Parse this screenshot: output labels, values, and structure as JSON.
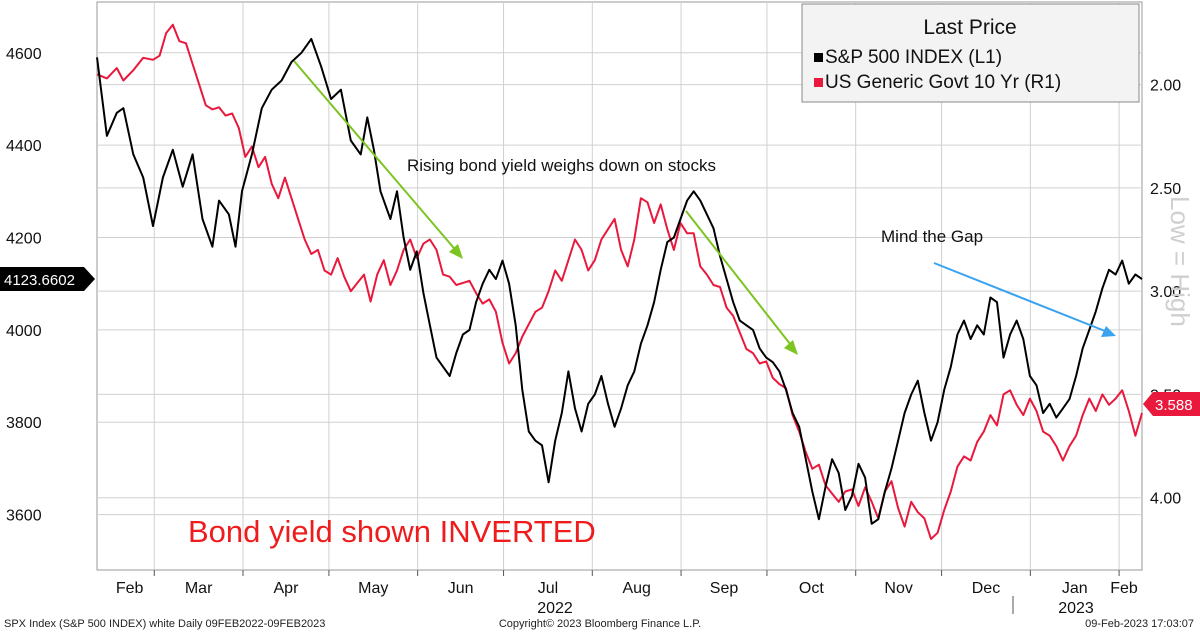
{
  "chart_data": {
    "type": "line",
    "legend": {
      "title": "Last Price",
      "placement": "top-right",
      "entries": [
        {
          "label": "S&P 500 INDEX  (L1)",
          "color": "#000000"
        },
        {
          "label": "US Generic Govt 10 Yr  (R1)",
          "color": "#e8193c"
        }
      ]
    },
    "left_axis": {
      "ticks": [
        "4600",
        "4400",
        "4200",
        "4000",
        "3800",
        "3600"
      ],
      "range": [
        3480,
        4710
      ]
    },
    "right_axis": {
      "ticks": [
        "2.00",
        "2.50",
        "3.00",
        "3.50",
        "4.00"
      ],
      "range": [
        1.6,
        4.35
      ],
      "inverted": true,
      "side_label": "Low = High"
    },
    "x_axis": {
      "months": [
        "Feb",
        "Mar",
        "Apr",
        "May",
        "Jun",
        "Jul",
        "Aug",
        "Sep",
        "Oct",
        "Nov",
        "Dec",
        "Jan",
        "Feb"
      ],
      "years": [
        "2022",
        "2023"
      ],
      "range": [
        "2022-02-09",
        "2023-02-09"
      ]
    },
    "last_values": {
      "left": "4123.6602",
      "right": "3.588"
    },
    "series": [
      {
        "name": "S&P 500 INDEX",
        "axis": "left",
        "color": "#000000",
        "points": [
          [
            0,
            4590
          ],
          [
            3,
            4420
          ],
          [
            6,
            4470
          ],
          [
            8,
            4480
          ],
          [
            11,
            4380
          ],
          [
            14,
            4330
          ],
          [
            17,
            4225
          ],
          [
            20,
            4330
          ],
          [
            23,
            4390
          ],
          [
            26,
            4310
          ],
          [
            29,
            4380
          ],
          [
            32,
            4240
          ],
          [
            35,
            4180
          ],
          [
            37,
            4280
          ],
          [
            40,
            4250
          ],
          [
            42,
            4180
          ],
          [
            44,
            4300
          ],
          [
            47,
            4380
          ],
          [
            50,
            4480
          ],
          [
            53,
            4520
          ],
          [
            56,
            4540
          ],
          [
            59,
            4580
          ],
          [
            62,
            4600
          ],
          [
            65,
            4630
          ],
          [
            68,
            4570
          ],
          [
            71,
            4500
          ],
          [
            74,
            4520
          ],
          [
            77,
            4410
          ],
          [
            80,
            4380
          ],
          [
            82,
            4460
          ],
          [
            84,
            4390
          ],
          [
            86,
            4300
          ],
          [
            89,
            4240
          ],
          [
            91,
            4300
          ],
          [
            93,
            4200
          ],
          [
            95,
            4130
          ],
          [
            97,
            4170
          ],
          [
            99,
            4080
          ],
          [
            101,
            4010
          ],
          [
            103,
            3940
          ],
          [
            105,
            3920
          ],
          [
            107,
            3900
          ],
          [
            109,
            3950
          ],
          [
            111,
            3990
          ],
          [
            113,
            4000
          ],
          [
            115,
            4060
          ],
          [
            117,
            4100
          ],
          [
            119,
            4130
          ],
          [
            121,
            4110
          ],
          [
            123,
            4150
          ],
          [
            125,
            4100
          ],
          [
            127,
            4010
          ],
          [
            129,
            3870
          ],
          [
            131,
            3780
          ],
          [
            133,
            3760
          ],
          [
            135,
            3750
          ],
          [
            137,
            3670
          ],
          [
            139,
            3760
          ],
          [
            141,
            3820
          ],
          [
            143,
            3910
          ],
          [
            145,
            3830
          ],
          [
            147,
            3780
          ],
          [
            149,
            3840
          ],
          [
            151,
            3860
          ],
          [
            153,
            3900
          ],
          [
            155,
            3840
          ],
          [
            157,
            3790
          ],
          [
            159,
            3830
          ],
          [
            161,
            3880
          ],
          [
            163,
            3910
          ],
          [
            165,
            3970
          ],
          [
            167,
            4010
          ],
          [
            169,
            4060
          ],
          [
            171,
            4130
          ],
          [
            173,
            4190
          ],
          [
            175,
            4200
          ],
          [
            177,
            4240
          ],
          [
            179,
            4280
          ],
          [
            181,
            4300
          ],
          [
            183,
            4280
          ],
          [
            185,
            4250
          ],
          [
            187,
            4220
          ],
          [
            189,
            4160
          ],
          [
            191,
            4110
          ],
          [
            193,
            4060
          ],
          [
            195,
            4020
          ],
          [
            197,
            4010
          ],
          [
            199,
            4000
          ],
          [
            201,
            3960
          ],
          [
            203,
            3940
          ],
          [
            205,
            3930
          ],
          [
            207,
            3910
          ],
          [
            209,
            3870
          ],
          [
            211,
            3820
          ],
          [
            213,
            3790
          ],
          [
            215,
            3720
          ],
          [
            217,
            3650
          ],
          [
            219,
            3590
          ],
          [
            221,
            3660
          ],
          [
            223,
            3720
          ],
          [
            225,
            3690
          ],
          [
            227,
            3610
          ],
          [
            229,
            3640
          ],
          [
            231,
            3710
          ],
          [
            233,
            3680
          ],
          [
            235,
            3580
          ],
          [
            237,
            3590
          ],
          [
            239,
            3650
          ],
          [
            241,
            3700
          ],
          [
            243,
            3760
          ],
          [
            245,
            3820
          ],
          [
            247,
            3860
          ],
          [
            249,
            3890
          ],
          [
            251,
            3820
          ],
          [
            253,
            3760
          ],
          [
            255,
            3800
          ],
          [
            257,
            3870
          ],
          [
            259,
            3920
          ],
          [
            261,
            3990
          ],
          [
            263,
            4020
          ],
          [
            265,
            3980
          ],
          [
            267,
            4010
          ],
          [
            269,
            3990
          ],
          [
            271,
            4070
          ],
          [
            273,
            4060
          ],
          [
            275,
            3940
          ],
          [
            277,
            3990
          ],
          [
            279,
            4020
          ],
          [
            281,
            3980
          ],
          [
            283,
            3900
          ],
          [
            285,
            3880
          ],
          [
            287,
            3820
          ],
          [
            289,
            3840
          ],
          [
            291,
            3810
          ],
          [
            293,
            3830
          ],
          [
            295,
            3850
          ],
          [
            297,
            3900
          ],
          [
            299,
            3960
          ],
          [
            301,
            4000
          ],
          [
            303,
            4040
          ],
          [
            305,
            4090
          ],
          [
            307,
            4130
          ],
          [
            309,
            4120
          ],
          [
            311,
            4150
          ],
          [
            313,
            4100
          ],
          [
            315,
            4120
          ],
          [
            317,
            4110
          ]
        ]
      },
      {
        "name": "US Generic Govt 10 Yr",
        "axis": "right",
        "color": "#e8193c",
        "points": [
          [
            0,
            1.95
          ],
          [
            3,
            1.97
          ],
          [
            6,
            1.92
          ],
          [
            8,
            1.98
          ],
          [
            11,
            1.93
          ],
          [
            14,
            1.87
          ],
          [
            17,
            1.88
          ],
          [
            19,
            1.86
          ],
          [
            21,
            1.75
          ],
          [
            23,
            1.71
          ],
          [
            25,
            1.79
          ],
          [
            27,
            1.8
          ],
          [
            29,
            1.9
          ],
          [
            31,
            2.0
          ],
          [
            33,
            2.1
          ],
          [
            35,
            2.12
          ],
          [
            37,
            2.11
          ],
          [
            39,
            2.15
          ],
          [
            41,
            2.14
          ],
          [
            43,
            2.21
          ],
          [
            45,
            2.35
          ],
          [
            47,
            2.3
          ],
          [
            49,
            2.4
          ],
          [
            51,
            2.35
          ],
          [
            53,
            2.48
          ],
          [
            55,
            2.55
          ],
          [
            57,
            2.45
          ],
          [
            59,
            2.55
          ],
          [
            61,
            2.65
          ],
          [
            63,
            2.75
          ],
          [
            65,
            2.82
          ],
          [
            67,
            2.8
          ],
          [
            69,
            2.9
          ],
          [
            71,
            2.92
          ],
          [
            73,
            2.84
          ],
          [
            75,
            2.93
          ],
          [
            77,
            3.0
          ],
          [
            79,
            2.96
          ],
          [
            81,
            2.92
          ],
          [
            83,
            3.05
          ],
          [
            85,
            2.92
          ],
          [
            87,
            2.85
          ],
          [
            89,
            2.97
          ],
          [
            91,
            2.9
          ],
          [
            93,
            2.8
          ],
          [
            95,
            2.75
          ],
          [
            97,
            2.84
          ],
          [
            99,
            2.77
          ],
          [
            101,
            2.75
          ],
          [
            103,
            2.8
          ],
          [
            105,
            2.92
          ],
          [
            107,
            2.93
          ],
          [
            109,
            2.97
          ],
          [
            111,
            2.96
          ],
          [
            113,
            2.95
          ],
          [
            115,
            3.01
          ],
          [
            117,
            3.06
          ],
          [
            119,
            3.04
          ],
          [
            121,
            3.1
          ],
          [
            123,
            3.25
          ],
          [
            125,
            3.35
          ],
          [
            127,
            3.3
          ],
          [
            129,
            3.22
          ],
          [
            131,
            3.16
          ],
          [
            133,
            3.1
          ],
          [
            135,
            3.08
          ],
          [
            137,
            3.0
          ],
          [
            139,
            2.9
          ],
          [
            141,
            2.95
          ],
          [
            143,
            2.85
          ],
          [
            145,
            2.75
          ],
          [
            147,
            2.8
          ],
          [
            149,
            2.9
          ],
          [
            151,
            2.85
          ],
          [
            153,
            2.75
          ],
          [
            155,
            2.7
          ],
          [
            157,
            2.65
          ],
          [
            159,
            2.8
          ],
          [
            161,
            2.88
          ],
          [
            163,
            2.75
          ],
          [
            165,
            2.55
          ],
          [
            167,
            2.57
          ],
          [
            169,
            2.67
          ],
          [
            171,
            2.58
          ],
          [
            173,
            2.7
          ],
          [
            175,
            2.8
          ],
          [
            177,
            2.67
          ],
          [
            179,
            2.72
          ],
          [
            181,
            2.72
          ],
          [
            183,
            2.88
          ],
          [
            185,
            2.92
          ],
          [
            187,
            2.97
          ],
          [
            189,
            2.98
          ],
          [
            191,
            3.08
          ],
          [
            193,
            3.12
          ],
          [
            195,
            3.2
          ],
          [
            197,
            3.28
          ],
          [
            199,
            3.3
          ],
          [
            201,
            3.35
          ],
          [
            203,
            3.34
          ],
          [
            205,
            3.42
          ],
          [
            207,
            3.45
          ],
          [
            209,
            3.47
          ],
          [
            211,
            3.6
          ],
          [
            213,
            3.68
          ],
          [
            215,
            3.78
          ],
          [
            217,
            3.86
          ],
          [
            219,
            3.84
          ],
          [
            221,
            3.94
          ],
          [
            223,
            3.98
          ],
          [
            225,
            4.02
          ],
          [
            227,
            3.97
          ],
          [
            229,
            3.96
          ],
          [
            231,
            4.04
          ],
          [
            233,
            3.95
          ],
          [
            235,
            4.02
          ],
          [
            237,
            4.1
          ],
          [
            239,
            3.97
          ],
          [
            241,
            3.92
          ],
          [
            243,
            4.05
          ],
          [
            245,
            4.14
          ],
          [
            247,
            4.02
          ],
          [
            249,
            4.07
          ],
          [
            251,
            4.1
          ],
          [
            253,
            4.2
          ],
          [
            255,
            4.17
          ],
          [
            257,
            4.06
          ],
          [
            259,
            3.97
          ],
          [
            261,
            3.85
          ],
          [
            263,
            3.8
          ],
          [
            265,
            3.82
          ],
          [
            267,
            3.73
          ],
          [
            269,
            3.68
          ],
          [
            271,
            3.6
          ],
          [
            273,
            3.65
          ],
          [
            275,
            3.5
          ],
          [
            277,
            3.48
          ],
          [
            279,
            3.55
          ],
          [
            281,
            3.6
          ],
          [
            283,
            3.52
          ],
          [
            285,
            3.58
          ],
          [
            287,
            3.68
          ],
          [
            289,
            3.7
          ],
          [
            291,
            3.75
          ],
          [
            293,
            3.82
          ],
          [
            295,
            3.75
          ],
          [
            297,
            3.7
          ],
          [
            299,
            3.6
          ],
          [
            301,
            3.52
          ],
          [
            303,
            3.58
          ],
          [
            305,
            3.5
          ],
          [
            307,
            3.55
          ],
          [
            309,
            3.52
          ],
          [
            311,
            3.48
          ],
          [
            313,
            3.58
          ],
          [
            315,
            3.7
          ],
          [
            317,
            3.59
          ]
        ]
      }
    ],
    "annotations": [
      {
        "text": "Rising bond yield weighs down on stocks",
        "color": "#111111"
      },
      {
        "text": "Mind the Gap",
        "color": "#111111"
      },
      {
        "text": "Bond yield shown INVERTED",
        "color": "#ee1c1c"
      }
    ]
  },
  "footer": {
    "left": "SPX Index (S&P 500 INDEX) white  Daily 09FEB2022-09FEB2023",
    "center": "Copyright© 2023 Bloomberg Finance L.P.",
    "right": "09-Feb-2023 17:03:07"
  }
}
